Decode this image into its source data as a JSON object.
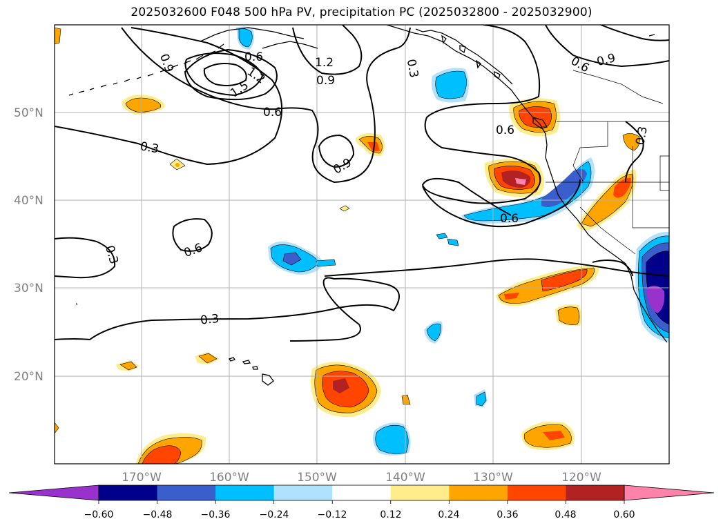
{
  "title": "2025032600 F048 500 hPa PV, precipitation PC (2025032800 - 2025032900)",
  "lat_labels": [
    "50°N",
    "40°N",
    "30°N",
    "20°N"
  ],
  "lon_labels": [
    "170°W",
    "160°W",
    "150°W",
    "140°W",
    "130°W",
    "120°W"
  ],
  "colorbar": {
    "ticks": [
      "−0.60",
      "−0.48",
      "−0.36",
      "−0.24",
      "−0.12",
      "0.12",
      "0.24",
      "0.36",
      "0.48",
      "0.60"
    ],
    "colors": [
      "#9932cc",
      "#00008b",
      "#3a5fcd",
      "#00bfff",
      "#b0e2ff",
      "#ffffff",
      "#ffec8b",
      "#ffa500",
      "#ff4500",
      "#b22222",
      "#ff82ab"
    ]
  },
  "contour_labels": [
    "0.9",
    "0.6",
    "1.2",
    "1.5",
    "0.3",
    "1.2",
    "0.9",
    "0.3",
    "0.6",
    "0.9",
    "0.6",
    "0.9",
    "0.6",
    "0.3",
    "0.6",
    "0.6",
    "0.3",
    "0.3"
  ]
}
